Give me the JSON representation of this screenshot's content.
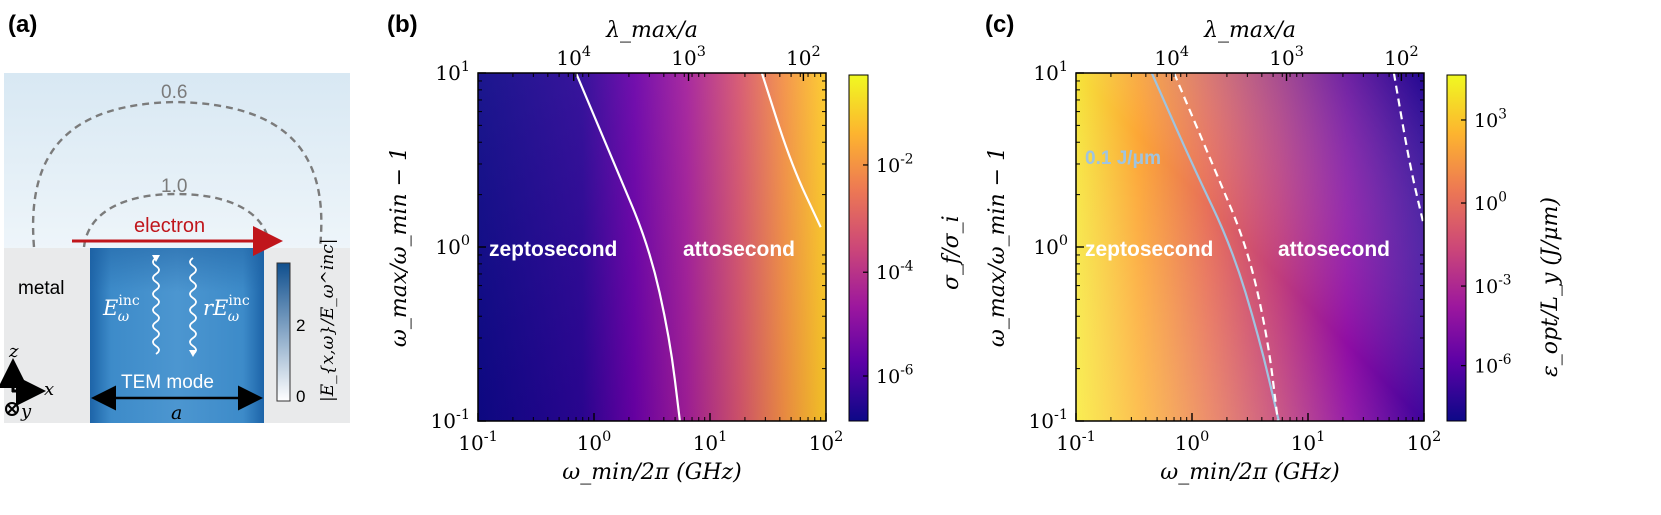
{
  "figure": {
    "panel_a": {
      "label": "(a)",
      "contour_outer": "0.6",
      "contour_inner": "1.0",
      "electron": "electron",
      "metal": "metal",
      "e_inc_main": "E",
      "e_inc_sub": "ω",
      "e_inc_sup": "inc",
      "r_prefix": "r",
      "tem_mode": "TEM mode",
      "width_label": "a",
      "axis_z": "z",
      "axis_x": "x",
      "axis_y": "y",
      "cbar_max": "2",
      "cbar_min": "0",
      "cbar_label": "|E_{x,ω}/E_ω^inc|"
    },
    "panel_b": {
      "label": "(b)",
      "region_left": "zeptosecond",
      "region_right": "attosecond",
      "cbar_label": "σ_f/σ_i"
    },
    "panel_c": {
      "label": "(c)",
      "region_left": "zeptosecond",
      "region_right": "attosecond",
      "contour_label": "0.1 J/μm",
      "contour_color": "#9fc4e0",
      "cbar_label": "ε_opt/L_y (J/μm)"
    }
  },
  "chart_data": [
    {
      "type": "heatmap",
      "panel": "b",
      "title": "",
      "xlabel": "ω_min/2π (GHz)",
      "ylabel": "ω_max/ω_min − 1",
      "top_label": "λ_max/a",
      "x_scale": "log",
      "xlim": [
        0.1,
        100
      ],
      "y_scale": "log",
      "ylim": [
        0.1,
        10
      ],
      "x_ticks": [
        {
          "base": "10",
          "exp": "-1"
        },
        {
          "base": "10",
          "exp": "0"
        },
        {
          "base": "10",
          "exp": "1"
        },
        {
          "base": "10",
          "exp": "2"
        }
      ],
      "y_ticks": [
        {
          "base": "10",
          "exp": "-1"
        },
        {
          "base": "10",
          "exp": "0"
        },
        {
          "base": "10",
          "exp": "1"
        }
      ],
      "top_ticks": [
        {
          "base": "10",
          "exp": "4"
        },
        {
          "base": "10",
          "exp": "3"
        },
        {
          "base": "10",
          "exp": "2"
        }
      ],
      "colorbar": {
        "scale": "log",
        "ticks": [
          "10^-6",
          "10^-4",
          "10^-2"
        ]
      },
      "colormap": [
        "#0d0887",
        "#5c01a6",
        "#9c179e",
        "#cc4778",
        "#ed7953",
        "#fdb42f",
        "#f0f921"
      ],
      "contours": [
        {
          "style": "solid",
          "color": "#ffffff",
          "points": [
            [
              0.7,
              10
            ],
            [
              1.5,
              3
            ],
            [
              3.0,
              1
            ],
            [
              4.5,
              0.3
            ],
            [
              5.5,
              0.1
            ]
          ]
        },
        {
          "style": "solid",
          "color": "#ffffff",
          "points": [
            [
              28,
              10
            ],
            [
              50,
              3
            ],
            [
              90,
              1.3
            ]
          ]
        }
      ]
    },
    {
      "type": "heatmap",
      "panel": "c",
      "title": "",
      "xlabel": "ω_min/2π (GHz)",
      "ylabel": "ω_max/ω_min − 1",
      "top_label": "λ_max/a",
      "x_scale": "log",
      "xlim": [
        0.1,
        100
      ],
      "y_scale": "log",
      "ylim": [
        0.1,
        10
      ],
      "x_ticks": [
        {
          "base": "10",
          "exp": "-1"
        },
        {
          "base": "10",
          "exp": "0"
        },
        {
          "base": "10",
          "exp": "1"
        },
        {
          "base": "10",
          "exp": "2"
        }
      ],
      "y_ticks": [
        {
          "base": "10",
          "exp": "-1"
        },
        {
          "base": "10",
          "exp": "0"
        },
        {
          "base": "10",
          "exp": "1"
        }
      ],
      "top_ticks": [
        {
          "base": "10",
          "exp": "4"
        },
        {
          "base": "10",
          "exp": "3"
        },
        {
          "base": "10",
          "exp": "2"
        }
      ],
      "colorbar": {
        "scale": "log",
        "ticks": [
          "10^-6",
          "10^-3",
          "10^0",
          "10^3"
        ]
      },
      "colormap": [
        "#0d0887",
        "#5c01a6",
        "#9c179e",
        "#cc4778",
        "#ed7953",
        "#fdb42f",
        "#f0f921"
      ],
      "contours": [
        {
          "style": "solid",
          "color": "#9fc4e0",
          "label": "0.1 J/μm",
          "points": [
            [
              0.45,
              10
            ],
            [
              1.0,
              3
            ],
            [
              2.2,
              1
            ],
            [
              3.8,
              0.3
            ],
            [
              5.6,
              0.1
            ]
          ]
        },
        {
          "style": "dashed",
          "color": "#ffffff",
          "points": [
            [
              0.7,
              10
            ],
            [
              1.5,
              3
            ],
            [
              3.0,
              1
            ],
            [
              4.5,
              0.3
            ],
            [
              5.5,
              0.1
            ]
          ]
        },
        {
          "style": "dashed",
          "color": "#ffffff",
          "points": [
            [
              55,
              10
            ],
            [
              75,
              3
            ],
            [
              98,
              1.4
            ]
          ]
        }
      ]
    }
  ]
}
